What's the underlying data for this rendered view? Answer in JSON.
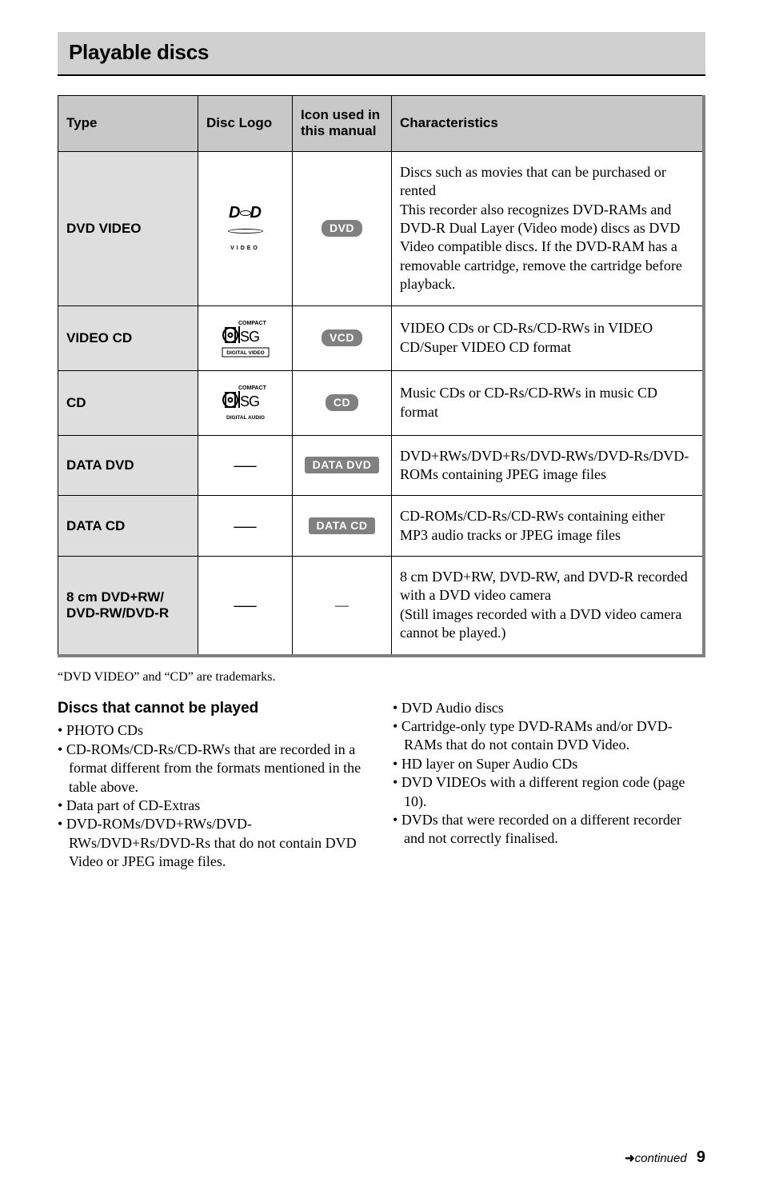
{
  "title": "Playable discs",
  "headers": {
    "type": "Type",
    "logo": "Disc Logo",
    "icon": "Icon used in this manual",
    "char": "Characteristics"
  },
  "rows": [
    {
      "type": "DVD VIDEO",
      "logo_kind": "dvd",
      "pill": "DVD",
      "pill_style": "round",
      "char": "Discs such as movies that can be purchased or rented\nThis recorder also recognizes DVD-RAMs and DVD-R Dual Layer (Video mode) discs as DVD Video compatible discs. If the DVD-RAM has a removable cartridge, remove the cartridge before playback."
    },
    {
      "type": "VIDEO CD",
      "logo_kind": "disc_video",
      "pill": "VCD",
      "pill_style": "round",
      "char": "VIDEO CDs or CD-Rs/CD-RWs in VIDEO CD/Super VIDEO CD format"
    },
    {
      "type": "CD",
      "logo_kind": "disc_audio",
      "pill": "CD",
      "pill_style": "round",
      "char": "Music CDs or CD-Rs/CD-RWs in music CD format"
    },
    {
      "type": "DATA DVD",
      "logo_kind": "dash",
      "pill": "DATA DVD",
      "pill_style": "square",
      "char": "DVD+RWs/DVD+Rs/DVD-RWs/DVD-Rs/DVD-ROMs containing JPEG image files"
    },
    {
      "type": "DATA CD",
      "logo_kind": "dash",
      "pill": "DATA CD",
      "pill_style": "square",
      "char": "CD-ROMs/CD-Rs/CD-RWs containing either MP3 audio tracks or JPEG image files"
    },
    {
      "type": "8 cm DVD+RW/\nDVD-RW/DVD-R",
      "logo_kind": "dash",
      "pill": "",
      "pill_style": "none",
      "char": "8 cm DVD+RW, DVD-RW, and DVD-R recorded with a DVD video camera\n(Still images recorded with a DVD video camera cannot be played.)"
    }
  ],
  "trademark_note": "“DVD VIDEO” and “CD” are trademarks.",
  "cannot_play_heading": "Discs that cannot be played",
  "left_bullets": [
    "PHOTO CDs",
    "CD-ROMs/CD-Rs/CD-RWs that are recorded in a format different from the formats mentioned in the table above.",
    "Data part of CD-Extras",
    "DVD-ROMs/DVD+RWs/DVD-RWs/DVD+Rs/DVD-Rs that do not contain DVD Video or JPEG image files."
  ],
  "right_bullets": [
    "DVD Audio discs",
    "Cartridge-only type DVD-RAMs and/or DVD-RAMs that do not contain DVD Video.",
    "HD layer on Super Audio CDs",
    "DVD VIDEOs with a different region code (page 10).",
    "DVDs that were recorded on a different recorder and not correctly finalised."
  ],
  "footer": {
    "arrow": "➜",
    "continued": "continued",
    "page": "9"
  },
  "colors": {
    "title_bg": "#d0d0d0",
    "header_bg": "#c8c8c8",
    "type_bg": "#dedede",
    "pill_bg": "#808080",
    "shadow": "#808080"
  }
}
